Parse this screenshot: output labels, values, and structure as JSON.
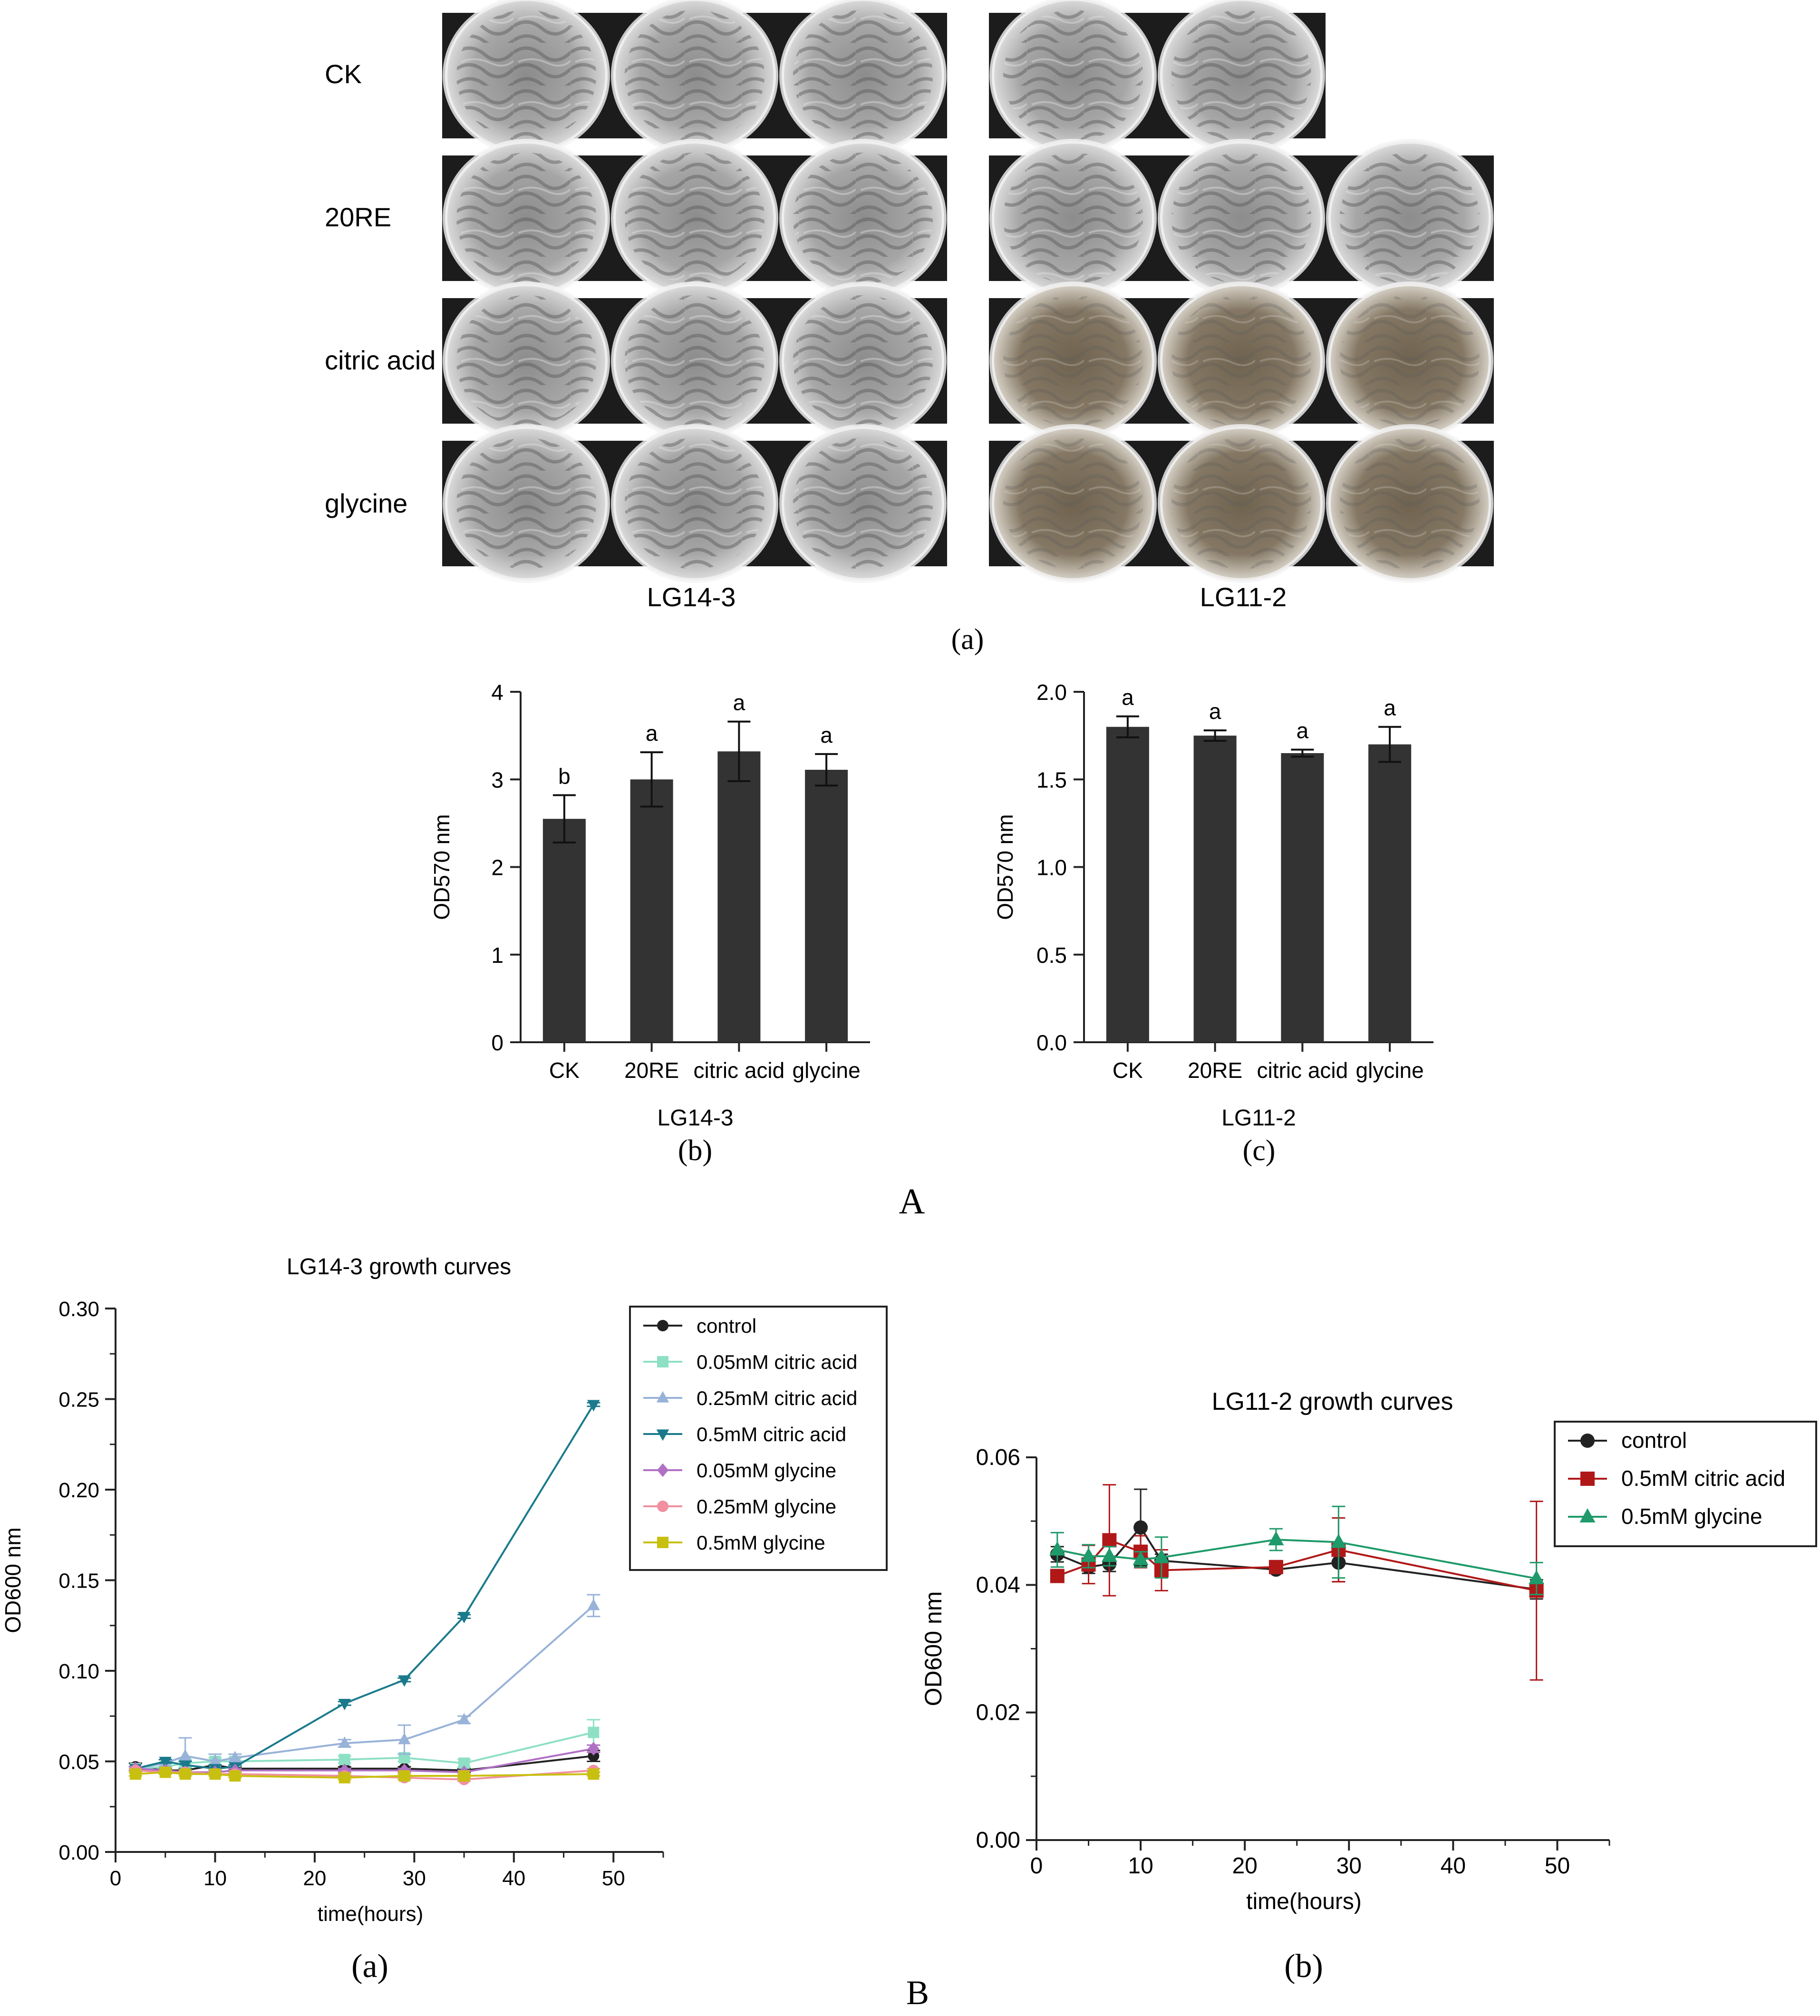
{
  "panel_A": {
    "label": "A",
    "photos": {
      "sublabel": "(a)",
      "row_labels": [
        "CK",
        "20RE",
        "citric acid",
        "glycine"
      ],
      "strain_labels": [
        "LG14-3",
        "LG11-2"
      ],
      "plates_per_row": [
        [
          3,
          2
        ],
        [
          3,
          3
        ],
        [
          3,
          3
        ],
        [
          3,
          3
        ]
      ]
    },
    "bar_charts": [
      {
        "sublabel": "(b)",
        "xlabel": "LG14-3",
        "ylabel": "OD570 nm"
      },
      {
        "sublabel": "(c)",
        "xlabel": "LG11-2",
        "ylabel": "OD570 nm"
      }
    ]
  },
  "panel_B": {
    "label": "B",
    "line_charts": [
      {
        "sublabel": "(a)"
      },
      {
        "sublabel": "(b)"
      }
    ]
  },
  "colors": {
    "bar": "#333333",
    "control": "#222222",
    "0.05mM citric acid": "#8ee0c4",
    "0.25mM citric acid": "#98b2d8",
    "0.5mM citric acid": "#1a7a8c",
    "0.05mM glycine": "#b070c4",
    "0.25mM glycine": "#f090a0",
    "0.5mM glycine": "#c8c010",
    "LG11-2 citric": "#b01818",
    "LG11-2 glycine": "#1f9a6a"
  },
  "chart_data": [
    {
      "type": "bar",
      "categories": [
        "CK",
        "20RE",
        "citric acid",
        "glycine"
      ],
      "values": [
        2.55,
        3.0,
        3.32,
        3.11
      ],
      "errors": [
        0.27,
        0.31,
        0.34,
        0.18
      ],
      "significance": [
        "b",
        "a",
        "a",
        "a"
      ],
      "xlabel": "LG14-3",
      "ylabel": "OD570 nm",
      "ylim": [
        0,
        4
      ],
      "yticks": [
        "0",
        "1",
        "2",
        "3",
        "4"
      ]
    },
    {
      "type": "bar",
      "categories": [
        "CK",
        "20RE",
        "citric acid",
        "glycine"
      ],
      "values": [
        1.8,
        1.75,
        1.65,
        1.7
      ],
      "errors": [
        0.06,
        0.03,
        0.02,
        0.1
      ],
      "significance": [
        "a",
        "a",
        "a",
        "a"
      ],
      "xlabel": "LG11-2",
      "ylabel": "OD570 nm",
      "ylim": [
        0,
        2.0
      ],
      "yticks": [
        "0.0",
        "0.5",
        "1.0",
        "1.5",
        "2.0"
      ]
    },
    {
      "type": "line",
      "title": "LG14-3 growth curves",
      "xlabel": "time(hours)",
      "ylabel": "OD600 nm",
      "xlim": [
        0,
        55
      ],
      "ylim": [
        0,
        0.3
      ],
      "xticks": [
        "0",
        "10",
        "20",
        "30",
        "40",
        "50"
      ],
      "yticks": [
        "0.00",
        "0.05",
        "0.10",
        "0.15",
        "0.20",
        "0.25",
        "0.30"
      ],
      "legend": "top-right",
      "series": [
        {
          "name": "control",
          "marker": "circle",
          "x": [
            2,
            5,
            7,
            10,
            12,
            23,
            29,
            35,
            48
          ],
          "y": [
            0.047,
            0.045,
            0.045,
            0.048,
            0.046,
            0.046,
            0.046,
            0.045,
            0.053
          ],
          "err": [
            0.002,
            0.001,
            0.001,
            0.002,
            0.001,
            0.001,
            0.001,
            0.001,
            0.003
          ]
        },
        {
          "name": "0.05mM citric acid",
          "marker": "square",
          "x": [
            2,
            5,
            7,
            10,
            12,
            23,
            29,
            35,
            48
          ],
          "y": [
            0.046,
            0.047,
            0.049,
            0.05,
            0.05,
            0.051,
            0.052,
            0.049,
            0.066
          ],
          "err": [
            0.001,
            0.001,
            0.002,
            0.002,
            0.002,
            0.002,
            0.002,
            0.002,
            0.007
          ]
        },
        {
          "name": "0.25mM citric acid",
          "marker": "triangle",
          "x": [
            2,
            5,
            7,
            10,
            12,
            23,
            29,
            35,
            48
          ],
          "y": [
            0.046,
            0.049,
            0.053,
            0.05,
            0.052,
            0.06,
            0.062,
            0.073,
            0.136
          ],
          "err": [
            0.001,
            0.002,
            0.01,
            0.004,
            0.002,
            0.002,
            0.008,
            0.002,
            0.006
          ]
        },
        {
          "name": "0.5mM citric acid",
          "marker": "triangle-down",
          "x": [
            2,
            5,
            7,
            10,
            12,
            23,
            29,
            35,
            48
          ],
          "y": [
            0.046,
            0.05,
            0.048,
            0.046,
            0.047,
            0.082,
            0.095,
            0.13,
            0.247
          ],
          "err": [
            0.001,
            0.001,
            0.002,
            0.002,
            0.001,
            0.001,
            0.001,
            0.001,
            0.001
          ]
        },
        {
          "name": "0.05mM glycine",
          "marker": "diamond",
          "x": [
            2,
            5,
            7,
            10,
            12,
            23,
            29,
            35,
            48
          ],
          "y": [
            0.046,
            0.045,
            0.044,
            0.044,
            0.045,
            0.045,
            0.045,
            0.044,
            0.057
          ],
          "err": [
            0.001,
            0.001,
            0.001,
            0.001,
            0.001,
            0.001,
            0.001,
            0.001,
            0.002
          ]
        },
        {
          "name": "0.25mM glycine",
          "marker": "circle",
          "x": [
            2,
            5,
            7,
            10,
            12,
            23,
            29,
            35,
            48
          ],
          "y": [
            0.045,
            0.044,
            0.044,
            0.043,
            0.043,
            0.042,
            0.041,
            0.04,
            0.045
          ],
          "err": [
            0.001,
            0.001,
            0.001,
            0.001,
            0.001,
            0.001,
            0.001,
            0.001,
            0.001
          ]
        },
        {
          "name": "0.5mM glycine",
          "marker": "square",
          "x": [
            2,
            5,
            7,
            10,
            12,
            23,
            29,
            35,
            48
          ],
          "y": [
            0.043,
            0.044,
            0.043,
            0.043,
            0.042,
            0.041,
            0.042,
            0.042,
            0.043
          ],
          "err": [
            0.001,
            0.001,
            0.001,
            0.001,
            0.001,
            0.001,
            0.001,
            0.001,
            0.001
          ]
        }
      ]
    },
    {
      "type": "line",
      "title": "LG11-2 growth curves",
      "xlabel": "time(hours)",
      "ylabel": "OD600 nm",
      "xlim": [
        0,
        55
      ],
      "ylim": [
        0,
        0.06
      ],
      "xticks": [
        "0",
        "10",
        "20",
        "30",
        "40",
        "50"
      ],
      "yticks": [
        "0.00",
        "0.02",
        "0.04",
        "0.06"
      ],
      "legend": "top-right",
      "series": [
        {
          "name": "control",
          "marker": "circle",
          "x": [
            2,
            5,
            7,
            10,
            12,
            23,
            29,
            48
          ],
          "y": [
            0.0448,
            0.0428,
            0.0433,
            0.049,
            0.0438,
            0.0424,
            0.0435,
            0.0393
          ],
          "err": [
            0.0012,
            0.001,
            0.0012,
            0.006,
            0.001,
            0.0005,
            0.003,
            0.0015
          ]
        },
        {
          "name": "0.5mM citric acid",
          "marker": "square",
          "x": [
            2,
            5,
            7,
            10,
            12,
            23,
            29,
            48
          ],
          "y": [
            0.0414,
            0.0432,
            0.047,
            0.0452,
            0.0423,
            0.0428,
            0.0455,
            0.0391
          ],
          "err": [
            0.0005,
            0.003,
            0.0087,
            0.0025,
            0.0032,
            0.0005,
            0.005,
            0.014
          ]
        },
        {
          "name": "0.5mM glycine",
          "marker": "triangle",
          "x": [
            2,
            5,
            7,
            10,
            12,
            23,
            29,
            48
          ],
          "y": [
            0.0455,
            0.0445,
            0.0445,
            0.044,
            0.0443,
            0.0471,
            0.0467,
            0.041
          ],
          "err": [
            0.0027,
            0.0018,
            0.0015,
            0.0012,
            0.0032,
            0.0017,
            0.0056,
            0.0025
          ]
        }
      ]
    }
  ]
}
